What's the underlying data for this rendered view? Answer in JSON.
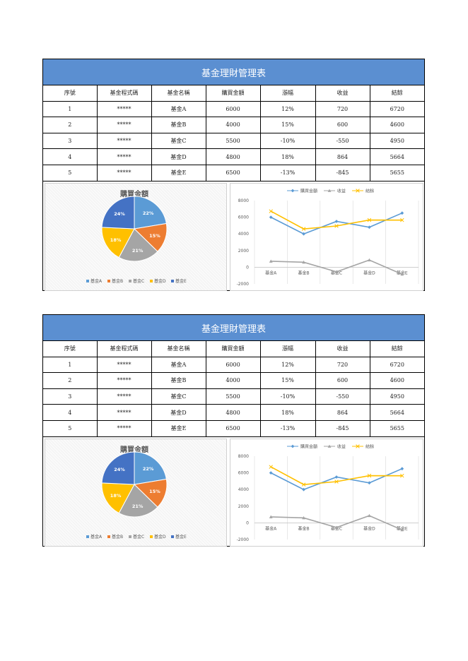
{
  "sheets": [
    {
      "title": "基金理財管理表",
      "headers": [
        "序號",
        "基金程式碼",
        "基金名稱",
        "購買金額",
        "漲幅",
        "收益",
        "結餘"
      ],
      "rows": [
        [
          "1",
          "*****",
          "基金A",
          "6000",
          "12%",
          "720",
          "6720"
        ],
        [
          "2",
          "*****",
          "基金B",
          "4000",
          "15%",
          "600",
          "4600"
        ],
        [
          "3",
          "*****",
          "基金C",
          "5500",
          "-10%",
          "-550",
          "4950"
        ],
        [
          "4",
          "*****",
          "基金D",
          "4800",
          "18%",
          "864",
          "5664"
        ],
        [
          "5",
          "*****",
          "基金E",
          "6500",
          "-13%",
          "-845",
          "5655"
        ]
      ]
    },
    {
      "title": "基金理財管理表",
      "headers": [
        "序號",
        "基金程式碼",
        "基金名稱",
        "購買金額",
        "漲幅",
        "收益",
        "結餘"
      ],
      "rows": [
        [
          "1",
          "*****",
          "基金A",
          "6000",
          "12%",
          "720",
          "6720"
        ],
        [
          "2",
          "*****",
          "基金B",
          "4000",
          "15%",
          "600",
          "4600"
        ],
        [
          "3",
          "*****",
          "基金C",
          "5500",
          "-10%",
          "-550",
          "4950"
        ],
        [
          "4",
          "*****",
          "基金D",
          "4800",
          "18%",
          "864",
          "5664"
        ],
        [
          "5",
          "*****",
          "基金E",
          "6500",
          "-13%",
          "-845",
          "5655"
        ]
      ]
    }
  ],
  "chart_data": [
    {
      "type": "pie",
      "title": "購買金額",
      "categories": [
        "基金A",
        "基金B",
        "基金C",
        "基金D",
        "基金E"
      ],
      "values": [
        6000,
        4000,
        5500,
        4800,
        6500
      ],
      "data_labels": [
        "22%",
        "15%",
        "21%",
        "18%",
        "24%"
      ],
      "colors": [
        "#5b9bd5",
        "#ed7d31",
        "#a5a5a5",
        "#ffc000",
        "#4472c4"
      ],
      "legend_position": "bottom"
    },
    {
      "type": "line",
      "title": "",
      "categories": [
        "基金A",
        "基金B",
        "基金C",
        "基金D",
        "基金E"
      ],
      "series": [
        {
          "name": "購買金額",
          "values": [
            6000,
            4000,
            5500,
            4800,
            6500
          ],
          "color": "#5b9bd5",
          "marker": "diamond"
        },
        {
          "name": "收益",
          "values": [
            720,
            600,
            -550,
            864,
            -845
          ],
          "color": "#a5a5a5",
          "marker": "triangle"
        },
        {
          "name": "結餘",
          "values": [
            6720,
            4600,
            4950,
            5664,
            5655
          ],
          "color": "#ffc000",
          "marker": "x"
        }
      ],
      "ylim": [
        -2000,
        8000
      ],
      "yticks": [
        "8000",
        "6000",
        "4000",
        "2000",
        "0",
        "-2000"
      ],
      "grid": "vertical",
      "legend_position": "top"
    }
  ]
}
